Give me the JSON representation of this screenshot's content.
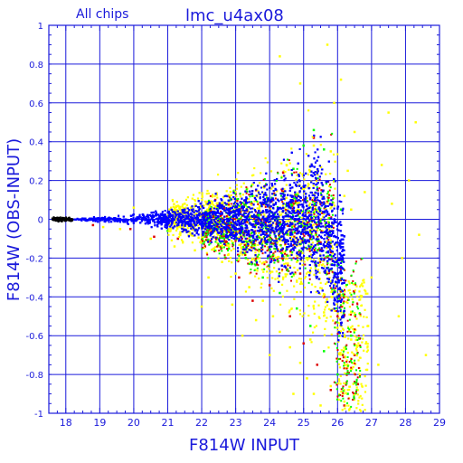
{
  "chart_data": {
    "type": "scatter",
    "title": "lmc_u4ax08",
    "subtitle": "All chips",
    "xlabel": "F814W INPUT",
    "ylabel": "F814W (OBS-INPUT)",
    "xlim": [
      17.5,
      29
    ],
    "ylim": [
      -1,
      1
    ],
    "xticks": [
      "18",
      "19",
      "20",
      "21",
      "22",
      "23",
      "24",
      "25",
      "26",
      "27",
      "28",
      "29"
    ],
    "yticks": [
      "1",
      "0.8",
      "0.6",
      "0.4",
      "0.2",
      "0",
      "-0.2",
      "-0.4",
      "-0.6",
      "-0.8",
      "-1"
    ],
    "grid": true,
    "series": [
      {
        "color": "#ffff00",
        "points": [
          [
            22.6,
            -0.22
          ],
          [
            23.0,
            -0.28
          ],
          [
            23.4,
            -0.35
          ],
          [
            23.8,
            -0.42
          ],
          [
            24.1,
            -0.5
          ],
          [
            24.3,
            -0.58
          ],
          [
            24.6,
            -0.66
          ],
          [
            24.9,
            -0.74
          ],
          [
            25.1,
            -0.82
          ],
          [
            25.3,
            -0.9
          ],
          [
            25.5,
            -0.96
          ],
          [
            25.8,
            -0.86
          ],
          [
            26.0,
            -0.72
          ],
          [
            26.2,
            -0.94
          ],
          [
            26.4,
            -0.62
          ],
          [
            26.6,
            -0.88
          ],
          [
            21.8,
            -0.16
          ],
          [
            22.2,
            -0.3
          ],
          [
            22.9,
            -0.44
          ],
          [
            23.6,
            -0.52
          ],
          [
            24.4,
            -0.3
          ],
          [
            24.8,
            -0.22
          ],
          [
            25.6,
            -0.48
          ],
          [
            25.9,
            -0.3
          ],
          [
            26.3,
            0.25
          ],
          [
            26.8,
            0.14
          ],
          [
            27.3,
            0.28
          ],
          [
            27.6,
            0.08
          ],
          [
            28.1,
            0.2
          ],
          [
            28.4,
            -0.08
          ],
          [
            27.0,
            -0.3
          ],
          [
            27.8,
            -0.5
          ],
          [
            24.3,
            0.84
          ],
          [
            25.7,
            0.9
          ],
          [
            26.1,
            0.72
          ],
          [
            25.9,
            0.6
          ],
          [
            26.5,
            0.45
          ],
          [
            24.9,
            0.7
          ],
          [
            27.5,
            0.55
          ],
          [
            28.6,
            -0.7
          ],
          [
            20.5,
            -0.1
          ],
          [
            21.2,
            -0.14
          ],
          [
            22.0,
            -0.45
          ],
          [
            23.2,
            -0.6
          ],
          [
            24.0,
            -0.7
          ],
          [
            24.7,
            -0.9
          ],
          [
            25.2,
            -0.62
          ],
          [
            26.7,
            -0.4
          ],
          [
            20.0,
            0.06
          ],
          [
            21.5,
            0.08
          ],
          [
            22.8,
            0.12
          ],
          [
            23.5,
            0.18
          ],
          [
            24.5,
            0.28
          ],
          [
            25.3,
            0.38
          ],
          [
            25.8,
            0.35
          ],
          [
            26.2,
            0.12
          ],
          [
            19.6,
            -0.05
          ],
          [
            19.1,
            -0.04
          ],
          [
            26.9,
            -0.55
          ],
          [
            27.2,
            -0.75
          ],
          [
            27.9,
            -0.2
          ],
          [
            28.3,
            0.5
          ],
          [
            26.4,
            0.05
          ],
          [
            25.4,
            -0.3
          ]
        ]
      },
      {
        "color": "#00ff00",
        "points": [
          [
            22.8,
            -0.15
          ],
          [
            23.3,
            -0.2
          ],
          [
            23.8,
            -0.3
          ],
          [
            24.3,
            -0.38
          ],
          [
            24.8,
            -0.46
          ],
          [
            25.2,
            -0.55
          ],
          [
            25.6,
            -0.68
          ],
          [
            26.0,
            -0.8
          ],
          [
            26.3,
            -0.9
          ],
          [
            23.5,
            0.12
          ],
          [
            24.2,
            0.2
          ],
          [
            24.7,
            0.26
          ],
          [
            25.0,
            0.38
          ],
          [
            25.3,
            0.46
          ],
          [
            25.6,
            0.36
          ],
          [
            25.9,
            0.2
          ],
          [
            26.1,
            0.05
          ],
          [
            26.2,
            -0.4
          ],
          [
            25.7,
            -0.25
          ],
          [
            25.1,
            -0.2
          ],
          [
            24.5,
            -0.15
          ],
          [
            22.0,
            -0.12
          ],
          [
            21.0,
            -0.06
          ],
          [
            26.4,
            -0.6
          ]
        ]
      },
      {
        "color": "#dd0000",
        "points": [
          [
            21.3,
            -0.1
          ],
          [
            22.1,
            -0.14
          ],
          [
            22.7,
            -0.2
          ],
          [
            23.1,
            -0.3
          ],
          [
            23.5,
            -0.42
          ],
          [
            24.0,
            -0.34
          ],
          [
            24.6,
            -0.5
          ],
          [
            25.0,
            -0.64
          ],
          [
            25.4,
            -0.75
          ],
          [
            25.8,
            -0.88
          ],
          [
            26.2,
            -0.96
          ],
          [
            26.5,
            -0.7
          ],
          [
            22.4,
            0.1
          ],
          [
            23.6,
            0.15
          ],
          [
            24.4,
            0.24
          ],
          [
            25.3,
            0.42
          ],
          [
            19.9,
            -0.05
          ],
          [
            20.6,
            -0.09
          ],
          [
            18.8,
            -0.03
          ],
          [
            26.0,
            -0.5
          ],
          [
            26.6,
            -0.85
          ],
          [
            24.9,
            -0.28
          ],
          [
            23.9,
            -0.22
          ],
          [
            25.6,
            -0.4
          ]
        ]
      }
    ]
  }
}
